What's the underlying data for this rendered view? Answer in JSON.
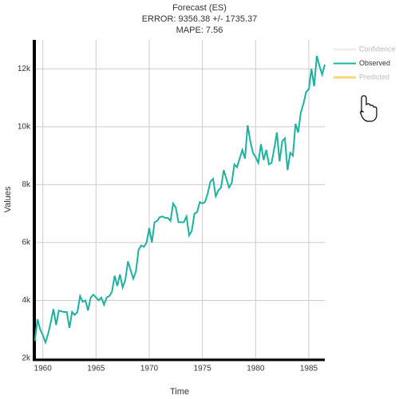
{
  "chart_data": {
    "type": "line",
    "title": "Forecast (ES)",
    "subtitle": [
      "ERROR: 9356.38 +/- 1735.37",
      "MAPE: 7.56"
    ],
    "x_label": "Time",
    "y_label": "Values",
    "x": [
      1959.25,
      1959.5,
      1959.75,
      1960,
      1960.25,
      1960.5,
      1960.75,
      1961,
      1961.25,
      1961.5,
      1961.75,
      1962,
      1962.25,
      1962.5,
      1962.75,
      1963,
      1963.25,
      1963.5,
      1963.75,
      1964,
      1964.25,
      1964.5,
      1964.75,
      1965,
      1965.25,
      1965.5,
      1965.75,
      1966,
      1966.25,
      1966.5,
      1966.75,
      1967,
      1967.25,
      1967.5,
      1967.75,
      1968,
      1968.25,
      1968.5,
      1968.75,
      1969,
      1969.25,
      1969.5,
      1969.75,
      1970,
      1970.25,
      1970.5,
      1970.75,
      1971,
      1971.25,
      1971.5,
      1971.75,
      1972,
      1972.25,
      1972.5,
      1972.75,
      1973,
      1973.25,
      1973.5,
      1973.75,
      1974,
      1974.25,
      1974.5,
      1974.75,
      1975,
      1975.25,
      1975.5,
      1975.75,
      1976,
      1976.25,
      1976.5,
      1976.75,
      1977,
      1977.25,
      1977.5,
      1977.75,
      1978,
      1978.25,
      1978.5,
      1978.75,
      1979,
      1979.25,
      1979.5,
      1979.75,
      1980,
      1980.25,
      1980.5,
      1980.75,
      1981,
      1981.25,
      1981.5,
      1981.75,
      1982,
      1982.25,
      1982.5,
      1982.75,
      1983,
      1983.25,
      1983.5,
      1983.75,
      1984,
      1984.25,
      1984.5,
      1984.75,
      1985,
      1985.25,
      1985.5,
      1985.75,
      1986,
      1986.25,
      1986.5
    ],
    "series": [
      {
        "name": "Observed",
        "color": "#1ab3a0",
        "values": [
          2600,
          3350,
          3000,
          2800,
          2550,
          2850,
          3250,
          3700,
          3150,
          3650,
          3620,
          3600,
          3600,
          3050,
          3600,
          3500,
          3600,
          4150,
          3950,
          4000,
          3650,
          4100,
          4200,
          4100,
          4000,
          4100,
          3850,
          4100,
          4150,
          4300,
          4850,
          4500,
          4900,
          4450,
          4700,
          5350,
          5050,
          4750,
          5000,
          5750,
          5900,
          5850,
          6000,
          6500,
          6000,
          6700,
          6750,
          6880,
          6900,
          6850,
          6850,
          6750,
          7350,
          7200,
          6700,
          6700,
          6700,
          6900,
          6250,
          6400,
          7000,
          7050,
          7400,
          7350,
          7400,
          7700,
          8100,
          8200,
          7600,
          7800,
          7900,
          8500,
          8200,
          7900,
          8050,
          8700,
          8600,
          8900,
          9200,
          8900,
          10050,
          9500,
          9100,
          8950,
          8750,
          9400,
          8850,
          9200,
          8700,
          8750,
          9250,
          9800,
          8800,
          9500,
          9600,
          8500,
          9100,
          9000,
          10100,
          9800,
          10500,
          10800,
          11200,
          11300,
          12000,
          11400,
          12450,
          12100,
          11800,
          12150
        ]
      }
    ],
    "legend": [
      {
        "name": "Confidence",
        "color": "#eeeeee",
        "hidden": true
      },
      {
        "name": "Observed",
        "color": "#1ab3a0",
        "hidden": false
      },
      {
        "name": "Predicted",
        "color": "#f5d67a",
        "hidden": true
      }
    ],
    "xlim": [
      1959.2,
      1986.5
    ],
    "xticks": [
      1960,
      1965,
      1970,
      1975,
      1980,
      1985
    ],
    "ylim": [
      2000,
      13000
    ],
    "yticks": [
      {
        "value": 2000,
        "label": "2k"
      },
      {
        "value": 4000,
        "label": "4k"
      },
      {
        "value": 6000,
        "label": "6k"
      },
      {
        "value": 8000,
        "label": "8k"
      },
      {
        "value": 10000,
        "label": "10k"
      },
      {
        "value": 12000,
        "label": "12k"
      }
    ],
    "grid": true
  }
}
